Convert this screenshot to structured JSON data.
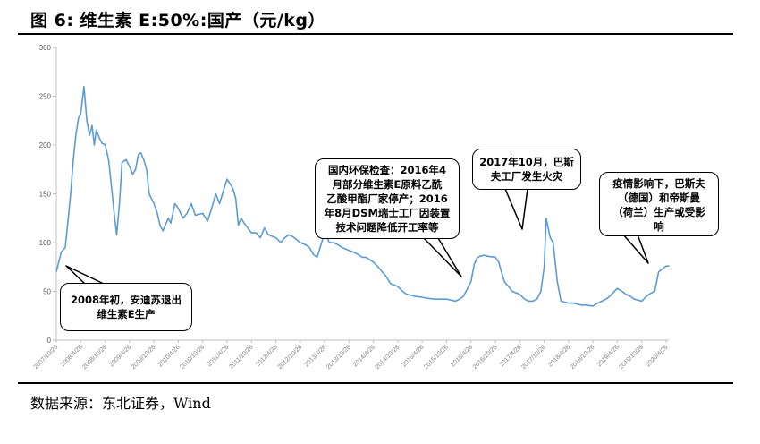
{
  "figure": {
    "title": "图 6: 维生素 E:50%:国产（元/kg）",
    "source": "数据来源：东北证券，Wind"
  },
  "annotations": [
    {
      "id": "a2008",
      "text": "2008年初，安迪苏退出\n维生素E生产"
    },
    {
      "id": "a2016",
      "text": "国内环保检查：2016年4\n月部分维生素E原料乙酰\n乙酸甲酯厂家停产；2016\n年8月DSM瑞士工厂因装置\n技术问题降低开工率等"
    },
    {
      "id": "a2017",
      "text": "2017年10月，巴斯\n夫工厂发生火灾"
    },
    {
      "id": "a2020",
      "text": "疫情影响下，巴斯夫\n（德国）和帝斯曼\n（荷兰）生产或受影\n响"
    }
  ],
  "chart_data": {
    "type": "line",
    "title": "维生素 E:50%:国产（元/kg）",
    "xlabel": "",
    "ylabel": "",
    "ylim": [
      0,
      300
    ],
    "yticks": [
      0,
      50,
      100,
      150,
      200,
      250,
      300
    ],
    "xtick_labels": [
      "2007/10/26",
      "2008/4/26",
      "2008/10/26",
      "2009/4/26",
      "2009/10/26",
      "2010/4/26",
      "2010/10/26",
      "2011/4/26",
      "2011/10/26",
      "2012/4/26",
      "2012/10/26",
      "2013/4/26",
      "2013/10/26",
      "2014/4/26",
      "2014/10/26",
      "2015/4/26",
      "2015/10/26",
      "2016/4/26",
      "2016/10/26",
      "2017/4/26",
      "2017/10/26",
      "2018/4/26",
      "2018/10/26",
      "2019/4/26",
      "2019/10/26",
      "2020/4/26"
    ],
    "grid": false,
    "color": "#5b9bd5",
    "series": [
      {
        "x": [
          "2007/10/26",
          "2007/12/1",
          "2008/1/1",
          "2008/1/20",
          "2008/2/10",
          "2008/3/1",
          "2008/3/20",
          "2008/4/10",
          "2008/4/26",
          "2008/5/20",
          "2008/6/10",
          "2008/7/1",
          "2008/7/20",
          "2008/8/5",
          "2008/8/20",
          "2008/9/10",
          "2008/10/1",
          "2008/10/26",
          "2008/11/20",
          "2008/12/10",
          "2009/1/1",
          "2009/1/20",
          "2009/2/10",
          "2009/3/1",
          "2009/4/1",
          "2009/4/26",
          "2009/5/20",
          "2009/6/10",
          "2009/7/1",
          "2009/7/20",
          "2009/8/10",
          "2009/9/1",
          "2009/9/20",
          "2009/10/26",
          "2009/11/20",
          "2009/12/10",
          "2010/1/1",
          "2010/1/20",
          "2010/2/10",
          "2010/3/1",
          "2010/4/1",
          "2010/4/26",
          "2010/6/1",
          "2010/7/1",
          "2010/8/1",
          "2010/9/1",
          "2010/10/26",
          "2010/12/1",
          "2011/1/1",
          "2011/2/1",
          "2011/3/1",
          "2011/4/26",
          "2011/5/20",
          "2011/6/10",
          "2011/7/1",
          "2011/7/20",
          "2011/8/10",
          "2011/9/1",
          "2011/10/26",
          "2011/12/1",
          "2012/1/1",
          "2012/2/1",
          "2012/3/1",
          "2012/4/26",
          "2012/6/1",
          "2012/7/1",
          "2012/8/1",
          "2012/9/1",
          "2012/10/26",
          "2012/12/1",
          "2013/1/1",
          "2013/2/1",
          "2013/3/1",
          "2013/4/26",
          "2013/6/1",
          "2013/7/1",
          "2013/8/1",
          "2013/9/1",
          "2013/10/26",
          "2013/12/1",
          "2014/1/1",
          "2014/2/1",
          "2014/3/1",
          "2014/4/26",
          "2014/6/1",
          "2014/7/1",
          "2014/8/1",
          "2014/9/1",
          "2014/10/26",
          "2014/12/1",
          "2015/1/1",
          "2015/2/1",
          "2015/3/1",
          "2015/4/26",
          "2015/6/1",
          "2015/8/1",
          "2015/10/26",
          "2015/12/1",
          "2016/1/1",
          "2016/2/1",
          "2016/3/1",
          "2016/4/26",
          "2016/5/20",
          "2016/6/10",
          "2016/7/1",
          "2016/8/1",
          "2016/9/1",
          "2016/10/26",
          "2016/11/20",
          "2016/12/10",
          "2017/1/1",
          "2017/2/1",
          "2017/3/1",
          "2017/4/26",
          "2017/6/1",
          "2017/7/1",
          "2017/8/1",
          "2017/9/1",
          "2017/10/1",
          "2017/10/26",
          "2017/11/10",
          "2017/11/25",
          "2017/12/10",
          "2018/1/1",
          "2018/2/1",
          "2018/3/1",
          "2018/4/26",
          "2018/6/1",
          "2018/7/1",
          "2018/8/1",
          "2018/9/1",
          "2018/10/26",
          "2018/12/1",
          "2019/1/1",
          "2019/2/1",
          "2019/3/1",
          "2019/4/26",
          "2019/6/1",
          "2019/7/1",
          "2019/8/1",
          "2019/9/1",
          "2019/10/26",
          "2019/12/1",
          "2020/1/1",
          "2020/2/1",
          "2020/3/1",
          "2020/4/26",
          "2020/5/20"
        ],
        "values": [
          70,
          90,
          95,
          120,
          150,
          185,
          210,
          228,
          232,
          260,
          225,
          210,
          220,
          200,
          215,
          208,
          202,
          200,
          185,
          160,
          130,
          108,
          140,
          182,
          185,
          178,
          170,
          175,
          190,
          192,
          185,
          175,
          150,
          140,
          130,
          118,
          112,
          118,
          125,
          120,
          140,
          135,
          125,
          130,
          140,
          128,
          130,
          122,
          135,
          150,
          140,
          165,
          160,
          155,
          145,
          118,
          125,
          120,
          110,
          110,
          105,
          115,
          108,
          105,
          100,
          105,
          108,
          106,
          100,
          98,
          95,
          88,
          85,
          110,
          100,
          100,
          98,
          95,
          92,
          90,
          88,
          85,
          85,
          80,
          75,
          70,
          65,
          58,
          55,
          50,
          47,
          46,
          45,
          44,
          43,
          42,
          42,
          41,
          40,
          42,
          45,
          60,
          78,
          84,
          86,
          87,
          86,
          85,
          80,
          70,
          60,
          55,
          50,
          47,
          42,
          40,
          40,
          42,
          50,
          75,
          125,
          115,
          105,
          100,
          60,
          40,
          38,
          38,
          37,
          36,
          36,
          35,
          38,
          40,
          42,
          45,
          53,
          50,
          47,
          45,
          42,
          40,
          45,
          48,
          50,
          70,
          76,
          76
        ]
      }
    ]
  }
}
